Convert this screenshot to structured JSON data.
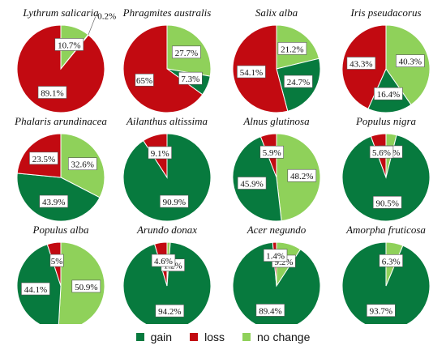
{
  "colors": {
    "gain": "#077a3e",
    "loss": "#c20a11",
    "no_change": "#8fd15a",
    "border": "#ffffff"
  },
  "chart_data": {
    "type": "pie",
    "legend": [
      {
        "key": "gain",
        "label": "gain"
      },
      {
        "key": "loss",
        "label": "loss"
      },
      {
        "key": "no_change",
        "label": "no change"
      }
    ],
    "legend_position": "bottom",
    "panels": [
      {
        "title": "Lythrum salicaria",
        "order": [
          "no_change",
          "gain",
          "loss"
        ],
        "slices": {
          "gain": 0.2,
          "loss": 89.1,
          "no_change": 10.7
        },
        "labels": {
          "gain": "0.2%",
          "loss": "89.1%",
          "no_change": "10.7%"
        }
      },
      {
        "title": "Phragmites australis",
        "order": [
          "no_change",
          "gain",
          "loss"
        ],
        "slices": {
          "gain": 7.3,
          "loss": 65,
          "no_change": 27.7
        },
        "labels": {
          "gain": "7.3%",
          "loss": "65%",
          "no_change": "27.7%"
        }
      },
      {
        "title": "Salix alba",
        "order": [
          "no_change",
          "gain",
          "loss"
        ],
        "slices": {
          "gain": 24.7,
          "loss": 54.1,
          "no_change": 21.2
        },
        "labels": {
          "gain": "24.7%",
          "loss": "54.1%",
          "no_change": "21.2%"
        }
      },
      {
        "title": "Iris pseudacorus",
        "order": [
          "no_change",
          "gain",
          "loss"
        ],
        "slices": {
          "gain": 16.4,
          "loss": 43.3,
          "no_change": 40.3
        },
        "labels": {
          "gain": "16.4%",
          "loss": "43.3%",
          "no_change": "40.3%"
        }
      },
      {
        "title": "Phalaris arundinacea",
        "order": [
          "no_change",
          "gain",
          "loss"
        ],
        "slices": {
          "gain": 43.9,
          "loss": 23.5,
          "no_change": 32.6
        },
        "labels": {
          "gain": "43.9%",
          "loss": "23.5%",
          "no_change": "32.6%"
        }
      },
      {
        "title": "Ailanthus altissima",
        "order": [
          "gain",
          "loss"
        ],
        "slices": {
          "gain": 90.9,
          "loss": 9.1
        },
        "labels": {
          "gain": "90.9%",
          "loss": "9.1%"
        }
      },
      {
        "title": "Alnus glutinosa",
        "order": [
          "no_change",
          "gain",
          "loss"
        ],
        "slices": {
          "gain": 45.9,
          "loss": 5.9,
          "no_change": 48.2
        },
        "labels": {
          "gain": "45.9%",
          "loss": "5.9%",
          "no_change": "48.2%"
        }
      },
      {
        "title": "Populus nigra",
        "order": [
          "no_change",
          "gain",
          "loss"
        ],
        "slices": {
          "gain": 90.5,
          "loss": 5.6,
          "no_change": 3.9
        },
        "labels": {
          "gain": "90.5%",
          "loss": "5.6%",
          "no_change": "3.9%"
        }
      },
      {
        "title": "Populus alba",
        "order": [
          "no_change",
          "gain",
          "loss"
        ],
        "slices": {
          "gain": 44.1,
          "loss": 5,
          "no_change": 50.9
        },
        "labels": {
          "gain": "44.1%",
          "loss": "5%",
          "no_change": "50.9%"
        }
      },
      {
        "title": "Arundo donax",
        "order": [
          "no_change",
          "gain",
          "loss"
        ],
        "slices": {
          "gain": 94.2,
          "loss": 4.6,
          "no_change": 1.2
        },
        "labels": {
          "gain": "94.2%",
          "loss": "4.6%",
          "no_change": "1.2%"
        }
      },
      {
        "title": "Acer negundo",
        "order": [
          "no_change",
          "gain",
          "loss"
        ],
        "slices": {
          "gain": 89.4,
          "loss": 1.4,
          "no_change": 9.2
        },
        "labels": {
          "gain": "89.4%",
          "loss": "1.4%",
          "no_change": "9.2%"
        }
      },
      {
        "title": "Amorpha fruticosa",
        "order": [
          "no_change",
          "gain"
        ],
        "slices": {
          "gain": 93.7,
          "no_change": 6.3
        },
        "labels": {
          "gain": "93.7%",
          "no_change": "6.3%"
        }
      }
    ]
  }
}
